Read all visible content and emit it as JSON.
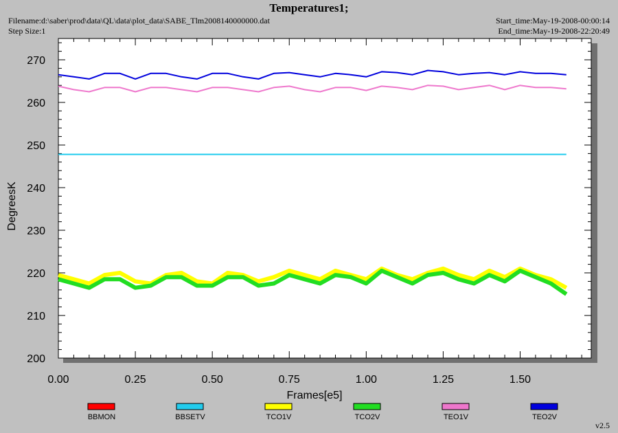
{
  "header": {
    "title": "Temperatures1;",
    "filename": "Filename:d:\\saber\\prod\\data\\QL\\data\\plot_data\\SABE_Tlm2008140000000.dat",
    "step_size": "Step Size:1",
    "start_time": "Start_time:May-19-2008-00:00:14",
    "end_time": "End_time:May-19-2008-22:20:49"
  },
  "footer": {
    "version": "v2.5"
  },
  "chart_data": {
    "type": "line",
    "title": "Temperatures1;",
    "xlabel": "Frames[e5]",
    "ylabel": "DegreesK",
    "xlim": [
      0,
      1.75
    ],
    "ylim": [
      200,
      275
    ],
    "xticks": [
      "0.00",
      "0.25",
      "0.50",
      "0.75",
      "1.00",
      "1.25",
      "1.50"
    ],
    "yticks": [
      "200",
      "210",
      "220",
      "230",
      "240",
      "250",
      "260",
      "270"
    ],
    "grid": false,
    "legend_position": "bottom",
    "series": [
      {
        "name": "BBMON",
        "color": "#ff0000",
        "x": [],
        "y": []
      },
      {
        "name": "BBSETV",
        "color": "#22ccee",
        "x": [
          0,
          0.25,
          0.5,
          0.75,
          1.0,
          1.25,
          1.5,
          1.65
        ],
        "y": [
          247.8,
          247.8,
          247.8,
          247.8,
          247.8,
          247.8,
          247.8,
          247.8
        ]
      },
      {
        "name": "TCO1V",
        "color": "#ffff00",
        "x": [
          0,
          0.05,
          0.1,
          0.15,
          0.2,
          0.25,
          0.3,
          0.35,
          0.4,
          0.45,
          0.5,
          0.55,
          0.6,
          0.65,
          0.7,
          0.75,
          0.8,
          0.85,
          0.9,
          0.95,
          1.0,
          1.05,
          1.1,
          1.15,
          1.2,
          1.25,
          1.3,
          1.35,
          1.4,
          1.45,
          1.5,
          1.55,
          1.6,
          1.65
        ],
        "y": [
          219.5,
          218.5,
          217.5,
          219.5,
          220,
          218,
          217.5,
          219.5,
          220,
          218,
          217.5,
          220,
          219.5,
          218,
          219,
          220.5,
          219.5,
          218.5,
          220.5,
          219.5,
          218.5,
          221,
          219.5,
          218.5,
          220,
          221,
          219.5,
          218.5,
          220.5,
          219,
          221,
          219.5,
          218.5,
          216.5
        ]
      },
      {
        "name": "TCO2V",
        "color": "#22dd22",
        "x": [
          0,
          0.05,
          0.1,
          0.15,
          0.2,
          0.25,
          0.3,
          0.35,
          0.4,
          0.45,
          0.5,
          0.55,
          0.6,
          0.65,
          0.7,
          0.75,
          0.8,
          0.85,
          0.9,
          0.95,
          1.0,
          1.05,
          1.1,
          1.15,
          1.2,
          1.25,
          1.3,
          1.35,
          1.4,
          1.45,
          1.5,
          1.55,
          1.6,
          1.65
        ],
        "y": [
          218.5,
          217.5,
          216.5,
          218.5,
          218.5,
          216.5,
          217,
          219,
          219,
          217,
          217,
          219,
          219,
          217,
          217.5,
          219.5,
          218.5,
          217.5,
          219.5,
          219,
          217.5,
          220.5,
          219,
          217.5,
          219.5,
          220,
          218.5,
          217.5,
          219.5,
          218,
          220.5,
          219,
          217.5,
          215
        ]
      },
      {
        "name": "TEO1V",
        "color": "#ee77cc",
        "x": [
          0,
          0.05,
          0.1,
          0.15,
          0.2,
          0.25,
          0.3,
          0.35,
          0.4,
          0.45,
          0.5,
          0.55,
          0.6,
          0.65,
          0.7,
          0.75,
          0.8,
          0.85,
          0.9,
          0.95,
          1.0,
          1.05,
          1.1,
          1.15,
          1.2,
          1.25,
          1.3,
          1.35,
          1.4,
          1.45,
          1.5,
          1.55,
          1.6,
          1.65
        ],
        "y": [
          263.8,
          263,
          262.5,
          263.5,
          263.5,
          262.5,
          263.5,
          263.5,
          263,
          262.5,
          263.5,
          263.5,
          263,
          262.5,
          263.5,
          263.8,
          263,
          262.5,
          263.5,
          263.5,
          262.8,
          263.8,
          263.5,
          263,
          264,
          263.8,
          263,
          263.5,
          264,
          263,
          264,
          263.5,
          263.5,
          263.2
        ]
      },
      {
        "name": "TEO2V",
        "color": "#0000dd",
        "x": [
          0,
          0.05,
          0.1,
          0.15,
          0.2,
          0.25,
          0.3,
          0.35,
          0.4,
          0.45,
          0.5,
          0.55,
          0.6,
          0.65,
          0.7,
          0.75,
          0.8,
          0.85,
          0.9,
          0.95,
          1.0,
          1.05,
          1.1,
          1.15,
          1.2,
          1.25,
          1.3,
          1.35,
          1.4,
          1.45,
          1.5,
          1.55,
          1.6,
          1.65
        ],
        "y": [
          266.5,
          266,
          265.5,
          266.8,
          266.8,
          265.5,
          266.8,
          266.8,
          266,
          265.5,
          266.8,
          266.8,
          266,
          265.5,
          266.8,
          267,
          266.5,
          266,
          266.8,
          266.5,
          266,
          267.2,
          267,
          266.5,
          267.5,
          267.2,
          266.5,
          266.8,
          267,
          266.5,
          267.2,
          266.8,
          266.8,
          266.5
        ]
      }
    ]
  }
}
